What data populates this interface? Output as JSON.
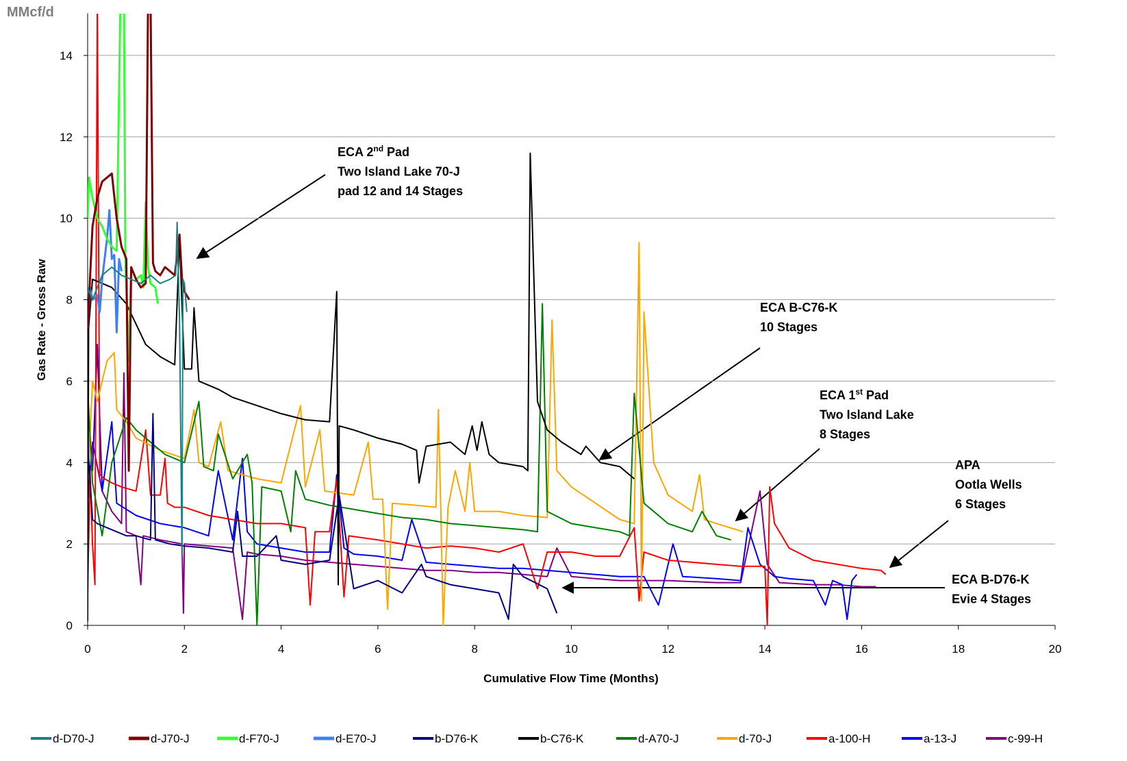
{
  "chart_data": {
    "type": "line",
    "unit_label": "MMcf/d",
    "y_label": "Gas Rate - Gross Raw",
    "x_label": "Cumulative Flow Time (Months)",
    "xlim": [
      0,
      20
    ],
    "xticks": [
      0,
      2,
      4,
      6,
      8,
      10,
      12,
      14,
      16,
      18,
      20
    ],
    "ylim": [
      0,
      15
    ],
    "yticks": [
      0,
      2,
      4,
      6,
      8,
      10,
      12,
      14
    ],
    "grid": true,
    "legend": "bottom",
    "annotations": [
      {
        "lines": [
          [
            "ECA 2",
            "nd",
            " Pad"
          ],
          [
            "Two Island Lake 70-J"
          ],
          [
            "pad 12 and 14 Stages"
          ]
        ]
      },
      {
        "lines": [
          [
            "ECA B-C76-K"
          ],
          [
            "10 Stages"
          ]
        ]
      },
      {
        "lines": [
          [
            "ECA 1",
            "st",
            " Pad"
          ],
          [
            "Two Island Lake"
          ],
          [
            "8 Stages"
          ]
        ]
      },
      {
        "lines": [
          [
            "APA"
          ],
          [
            "Ootla Wells"
          ],
          [
            "6 Stages"
          ]
        ]
      },
      {
        "lines": [
          [
            "ECA B-D76-K"
          ],
          [
            "Evie 4 Stages"
          ]
        ]
      }
    ],
    "series": [
      {
        "name": "d-D70-J",
        "color": "#1b8080",
        "width": 2,
        "x": [
          0,
          0.1,
          0.3,
          0.5,
          0.7,
          0.9,
          1.1,
          1.3,
          1.5,
          1.7,
          1.82,
          1.85,
          1.9,
          1.95,
          1.97,
          2.0,
          2.05
        ],
        "values": [
          8.3,
          8.0,
          8.6,
          8.8,
          8.6,
          8.5,
          8.4,
          8.6,
          8.4,
          8.5,
          8.6,
          9.9,
          7.5,
          1.7,
          8.5,
          8.4,
          7.7
        ]
      },
      {
        "name": "d-J70-J",
        "color": "#800000",
        "width": 3,
        "x": [
          0,
          0.1,
          0.2,
          0.3,
          0.4,
          0.5,
          0.6,
          0.7,
          0.8,
          0.85,
          0.9,
          1.0,
          1.1,
          1.2,
          1.25,
          1.3,
          1.35,
          1.4,
          1.5,
          1.6,
          1.7,
          1.8,
          1.9,
          1.95,
          2.0,
          2.1
        ],
        "values": [
          7.3,
          9.8,
          10.5,
          10.9,
          11.0,
          11.1,
          10.0,
          9.3,
          9.0,
          3.8,
          8.8,
          8.5,
          8.3,
          8.4,
          15.5,
          15.5,
          8.9,
          8.7,
          8.6,
          8.8,
          8.7,
          8.6,
          9.6,
          8.5,
          8.2,
          8.0
        ]
      },
      {
        "name": "d-F70-J",
        "color": "#33ff33",
        "width": 3,
        "x": [
          0,
          0.03,
          0.1,
          0.2,
          0.3,
          0.4,
          0.5,
          0.6,
          0.68,
          0.7,
          0.75,
          0.78,
          0.85,
          0.9,
          1.0,
          1.1,
          1.15,
          1.2,
          1.25,
          1.3,
          1.4,
          1.45
        ],
        "values": [
          10.0,
          11.0,
          10.5,
          10.0,
          9.8,
          9.5,
          9.3,
          9.2,
          15.5,
          15.5,
          15.5,
          9.0,
          6.5,
          8.8,
          8.5,
          8.6,
          8.3,
          10.4,
          8.8,
          8.4,
          8.3,
          7.9
        ]
      },
      {
        "name": "d-E70-J",
        "color": "#3f7ff0",
        "width": 3,
        "x": [
          0,
          0.05,
          0.1,
          0.2,
          0.25,
          0.3,
          0.4,
          0.45,
          0.5,
          0.55,
          0.6,
          0.65,
          0.7
        ],
        "values": [
          7.3,
          8.3,
          8.0,
          8.1,
          7.7,
          8.5,
          9.5,
          10.2,
          9.0,
          9.1,
          7.2,
          9.0,
          8.7
        ]
      },
      {
        "name": "b-D76-K",
        "color": "#000080",
        "width": 2,
        "x": [
          0,
          0.1,
          0.2,
          0.4,
          0.6,
          0.8,
          1.0,
          1.3,
          1.35,
          1.4,
          1.7,
          2.0,
          2.5,
          3.0,
          3.1,
          3.2,
          3.5,
          3.9,
          4.0,
          4.5,
          5.0,
          5.2,
          5.5,
          6.0,
          6.5,
          6.9,
          7.0,
          7.5,
          8.0,
          8.5,
          8.7,
          8.8,
          9.0,
          9.5,
          9.7
        ],
        "values": [
          4.5,
          2.6,
          2.5,
          2.4,
          2.3,
          2.2,
          2.2,
          2.1,
          5.2,
          2.1,
          2.0,
          1.95,
          1.9,
          1.8,
          2.8,
          1.7,
          1.7,
          2.2,
          1.6,
          1.5,
          1.6,
          3.2,
          0.9,
          1.1,
          0.8,
          1.5,
          1.2,
          1.0,
          0.9,
          0.8,
          0.15,
          1.5,
          1.2,
          0.9,
          0.3
        ]
      },
      {
        "name": "b-C76-K",
        "color": "#000000",
        "width": 2,
        "x": [
          0,
          0.02,
          0.1,
          0.5,
          0.8,
          1.0,
          1.2,
          1.5,
          1.8,
          1.9,
          2.0,
          2.15,
          2.2,
          2.3,
          2.7,
          3.0,
          3.5,
          4.0,
          4.5,
          5.0,
          5.15,
          5.18,
          5.2,
          5.5,
          6.0,
          6.5,
          6.8,
          6.85,
          7.0,
          7.5,
          7.8,
          7.95,
          8.05,
          8.15,
          8.3,
          8.5,
          9.0,
          9.1,
          9.15,
          9.3,
          9.5,
          9.8,
          10.2,
          10.3,
          10.6,
          11.0,
          11.3
        ],
        "values": [
          0.1,
          7.3,
          8.5,
          8.3,
          7.9,
          7.4,
          6.9,
          6.6,
          6.4,
          9.5,
          6.3,
          6.3,
          7.8,
          6.0,
          5.8,
          5.6,
          5.4,
          5.2,
          5.05,
          5.0,
          8.2,
          1.0,
          4.9,
          4.8,
          4.6,
          4.45,
          4.3,
          3.5,
          4.4,
          4.5,
          4.2,
          4.9,
          4.3,
          5.0,
          4.2,
          4.0,
          3.9,
          3.8,
          11.6,
          5.5,
          4.8,
          4.5,
          4.2,
          4.4,
          4.0,
          3.9,
          3.6
        ]
      },
      {
        "name": "d-A70-J",
        "color": "#008000",
        "width": 2,
        "x": [
          0,
          0.1,
          0.3,
          0.5,
          0.8,
          1.0,
          1.3,
          1.6,
          2.0,
          2.3,
          2.4,
          2.6,
          2.7,
          3.0,
          3.3,
          3.4,
          3.5,
          3.6,
          4.0,
          4.2,
          4.3,
          4.5,
          5.0,
          5.5,
          6.0,
          6.5,
          7.0,
          7.5,
          8.0,
          8.5,
          9.0,
          9.3,
          9.4,
          9.5,
          10.0,
          10.5,
          11.0,
          11.2,
          11.3,
          11.5,
          12.0,
          12.5,
          12.7,
          13.0,
          13.3
        ],
        "values": [
          5.8,
          3.5,
          2.2,
          4.0,
          5.1,
          4.8,
          4.5,
          4.2,
          4.0,
          5.5,
          3.9,
          3.8,
          4.7,
          3.6,
          4.2,
          3.5,
          0,
          3.4,
          3.3,
          2.3,
          3.8,
          3.1,
          2.95,
          2.85,
          2.75,
          2.65,
          2.6,
          2.5,
          2.45,
          2.4,
          2.35,
          2.3,
          7.9,
          2.8,
          2.5,
          2.4,
          2.3,
          2.2,
          5.7,
          3.0,
          2.5,
          2.3,
          2.8,
          2.2,
          2.1
        ]
      },
      {
        "name": "d-70-J",
        "color": "#ffa500",
        "width": 2,
        "x": [
          0,
          0.1,
          0.2,
          0.4,
          0.55,
          0.6,
          0.8,
          1.0,
          1.5,
          2.0,
          2.2,
          2.3,
          2.5,
          2.75,
          2.9,
          3.5,
          4.0,
          4.4,
          4.5,
          4.8,
          4.9,
          5.5,
          5.8,
          5.9,
          6.1,
          6.2,
          6.3,
          6.8,
          7.2,
          7.25,
          7.3,
          7.35,
          7.45,
          7.6,
          7.8,
          7.9,
          8.0,
          8.5,
          9.0,
          9.5,
          9.6,
          9.7,
          10.0,
          10.5,
          11.0,
          11.3,
          11.4,
          11.45,
          11.5,
          11.7,
          12.0,
          12.5,
          12.65,
          12.75,
          13.0,
          13.55
        ],
        "values": [
          3.5,
          6.0,
          5.5,
          6.5,
          6.7,
          5.3,
          5.0,
          4.6,
          4.3,
          4.1,
          5.3,
          4.0,
          3.9,
          5.0,
          3.8,
          3.6,
          3.5,
          5.4,
          3.4,
          4.8,
          3.3,
          3.2,
          4.5,
          3.1,
          3.1,
          0.4,
          3.0,
          2.95,
          2.9,
          5.3,
          2.9,
          0,
          2.9,
          3.8,
          2.8,
          4.0,
          2.8,
          2.8,
          2.7,
          2.65,
          7.5,
          3.8,
          3.4,
          3.0,
          2.6,
          2.5,
          9.4,
          0.6,
          7.7,
          4.0,
          3.2,
          2.8,
          3.7,
          2.6,
          2.5,
          2.3
        ]
      },
      {
        "name": "a-100-H",
        "color": "#ff0000",
        "width": 2,
        "x": [
          0,
          0.05,
          0.1,
          0.15,
          0.2,
          0.25,
          0.35,
          0.5,
          0.7,
          1.0,
          1.2,
          1.3,
          1.5,
          1.6,
          1.65,
          1.8,
          2.0,
          2.5,
          3.0,
          3.5,
          4.0,
          4.5,
          4.6,
          4.7,
          5.0,
          5.15,
          5.3,
          5.4,
          6.0,
          6.5,
          7.0,
          7.5,
          8.0,
          8.5,
          9.0,
          9.3,
          9.5,
          10.0,
          10.5,
          11.0,
          11.3,
          11.4,
          11.5,
          12.0,
          12.5,
          13.0,
          13.5,
          14.0,
          14.05,
          14.1,
          14.2,
          14.5,
          15.0,
          15.5,
          16.0,
          16.4,
          16.5
        ],
        "values": [
          0.8,
          3.8,
          2.0,
          1.0,
          15.5,
          3.7,
          3.6,
          3.5,
          3.4,
          3.3,
          4.8,
          3.2,
          3.2,
          4.1,
          3.0,
          2.9,
          2.9,
          2.7,
          2.6,
          2.5,
          2.5,
          2.4,
          0.5,
          2.3,
          2.3,
          3.6,
          0.7,
          2.2,
          2.1,
          2.0,
          1.9,
          1.95,
          1.9,
          1.8,
          2.0,
          0.9,
          1.8,
          1.8,
          1.7,
          1.7,
          2.4,
          0.6,
          1.8,
          1.6,
          1.55,
          1.5,
          1.45,
          1.45,
          0,
          3.4,
          2.5,
          1.9,
          1.6,
          1.5,
          1.4,
          1.35,
          1.25
        ]
      },
      {
        "name": "a-13-J",
        "color": "#0000ff",
        "width": 2,
        "x": [
          0,
          0.1,
          0.2,
          0.3,
          0.5,
          0.6,
          1.0,
          1.5,
          2.0,
          2.5,
          2.7,
          3.0,
          3.2,
          3.3,
          3.5,
          4.0,
          4.5,
          5.0,
          5.15,
          5.3,
          5.5,
          6.0,
          6.5,
          6.7,
          7.0,
          7.5,
          8.0,
          8.5,
          9.0,
          9.5,
          10.0,
          10.5,
          11.0,
          11.5,
          11.8,
          12.1,
          12.3,
          13.0,
          13.5,
          13.65,
          13.9,
          14.2,
          14.5,
          15.0,
          15.25,
          15.4,
          15.6,
          15.7,
          15.8,
          15.9
        ],
        "values": [
          4.0,
          3.8,
          6.9,
          3.3,
          5.0,
          3.0,
          2.7,
          2.5,
          2.4,
          2.2,
          3.8,
          2.1,
          4.1,
          2.3,
          2.0,
          1.9,
          1.8,
          1.8,
          3.7,
          1.9,
          1.75,
          1.7,
          1.6,
          2.6,
          1.55,
          1.5,
          1.45,
          1.4,
          1.4,
          1.35,
          1.3,
          1.25,
          1.2,
          1.2,
          0.5,
          2.0,
          1.2,
          1.15,
          1.1,
          2.4,
          1.5,
          1.2,
          1.15,
          1.1,
          0.5,
          1.1,
          1.0,
          0.15,
          1.1,
          1.25
        ]
      },
      {
        "name": "c-99-H",
        "color": "#800080",
        "width": 2,
        "x": [
          0,
          0.1,
          0.3,
          0.5,
          0.7,
          0.75,
          0.8,
          1.0,
          1.1,
          1.15,
          1.5,
          1.95,
          1.98,
          2.0,
          2.5,
          3.0,
          3.2,
          3.3,
          3.5,
          4.0,
          4.5,
          5.0,
          5.5,
          6.0,
          6.5,
          7.0,
          7.5,
          8.0,
          8.5,
          9.0,
          9.5,
          9.7,
          10.0,
          10.5,
          11.0,
          12.0,
          13.0,
          13.5,
          13.9,
          14.05,
          14.3,
          15.0,
          15.5,
          16.0,
          16.3
        ],
        "values": [
          3.0,
          4.5,
          3.3,
          2.8,
          2.5,
          6.2,
          2.3,
          2.2,
          1.0,
          2.2,
          2.1,
          2.0,
          0.3,
          2.0,
          1.95,
          1.9,
          0.15,
          1.8,
          1.75,
          1.7,
          1.6,
          1.55,
          1.5,
          1.45,
          1.4,
          1.35,
          1.35,
          1.3,
          1.3,
          1.25,
          1.2,
          1.9,
          1.2,
          1.15,
          1.1,
          1.1,
          1.05,
          1.05,
          3.3,
          1.5,
          1.05,
          1.0,
          1.0,
          0.95,
          0.95
        ]
      }
    ]
  }
}
